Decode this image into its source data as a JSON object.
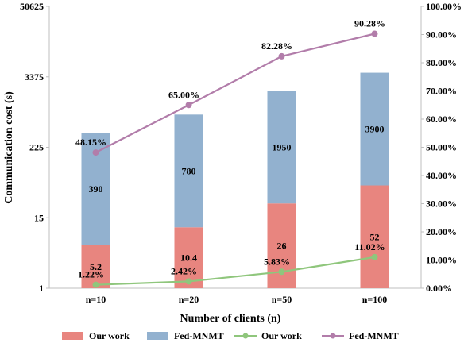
{
  "chart_data": {
    "type": "bar+line",
    "xlabel": "Number of clients (n)",
    "ylabel": "Communication cost (s)",
    "categories": [
      "n=10",
      "n=20",
      "n=50",
      "n=100"
    ],
    "left_axis": {
      "scale": "log15",
      "ticks": [
        1,
        15,
        225,
        3375,
        50625
      ],
      "tick_labels": [
        "1",
        "15",
        "225",
        "3375",
        "50625"
      ],
      "ylim": [
        1,
        50625
      ]
    },
    "right_axis": {
      "ticks": [
        0,
        10,
        20,
        30,
        40,
        50,
        60,
        70,
        80,
        90,
        100
      ],
      "tick_labels": [
        "0.00%",
        "10.00%",
        "20.00%",
        "30.00%",
        "40.00%",
        "50.00%",
        "60.00%",
        "70.00%",
        "80.00%",
        "90.00%",
        "100.00%"
      ],
      "ylim": [
        0,
        100
      ]
    },
    "bar_series": [
      {
        "name": "Our work",
        "values": [
          5.2,
          10.4,
          26,
          52
        ],
        "labels": [
          "5.2",
          "10.4",
          "26",
          "52"
        ],
        "color": "#e8857f"
      },
      {
        "name": "Fed-MNMT",
        "values": [
          390,
          780,
          1950,
          3900
        ],
        "labels": [
          "390",
          "780",
          "1950",
          "3900"
        ],
        "color": "#92b1cf"
      }
    ],
    "line_series": [
      {
        "name": "Our work",
        "values": [
          1.22,
          2.42,
          5.83,
          11.02
        ],
        "labels": [
          "1.22%",
          "2.42%",
          "5.83%",
          "11.02%"
        ],
        "color": "#8fc67c"
      },
      {
        "name": "Fed-MNMT",
        "values": [
          48.15,
          65.0,
          82.28,
          90.28
        ],
        "labels": [
          "48.15%",
          "65.00%",
          "82.28%",
          "90.28%"
        ],
        "color": "#b27daa"
      }
    ],
    "grid": false,
    "legend": "bottom"
  }
}
